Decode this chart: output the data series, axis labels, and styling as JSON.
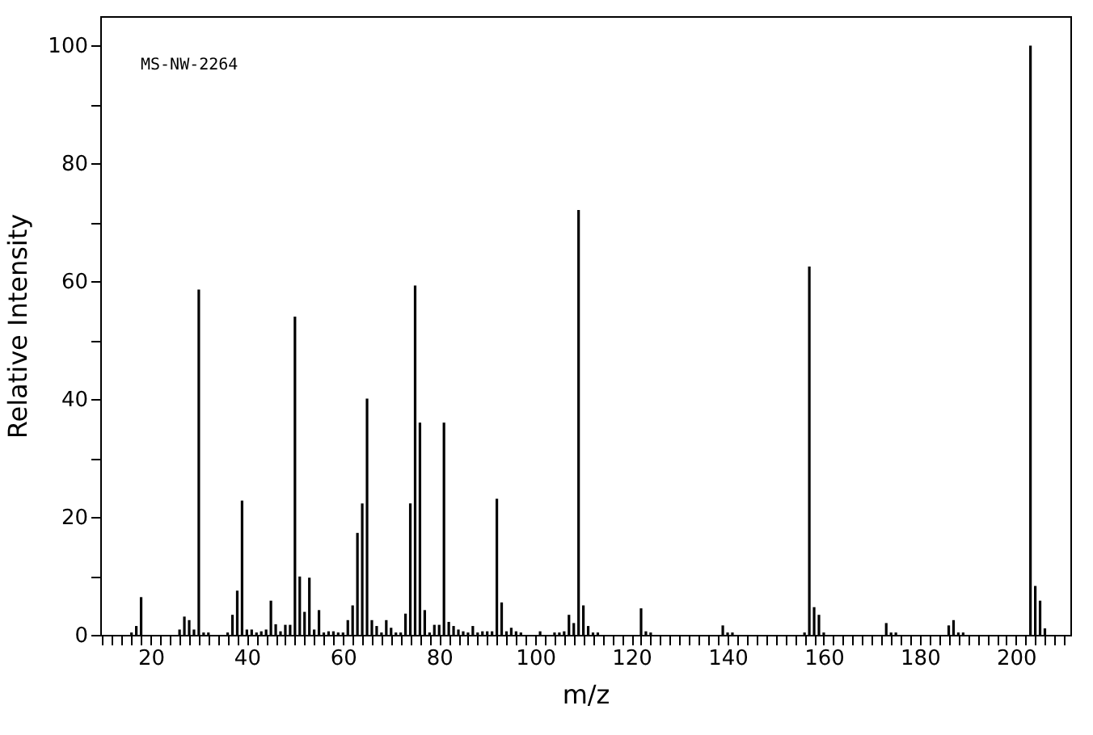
{
  "chart_data": {
    "type": "bar",
    "xlabel": "m/z",
    "ylabel": "Relative Intensity",
    "annotations": [
      "MS-NW-2264"
    ],
    "color": "#000000",
    "grid": false,
    "x": [
      16,
      17,
      18,
      26,
      27,
      28,
      29,
      30,
      31,
      32,
      36,
      37,
      38,
      39,
      40,
      41,
      42,
      43,
      44,
      45,
      46,
      47,
      48,
      49,
      50,
      51,
      52,
      53,
      54,
      55,
      56,
      57,
      58,
      59,
      60,
      61,
      62,
      63,
      64,
      65,
      66,
      67,
      68,
      69,
      70,
      71,
      72,
      73,
      74,
      75,
      76,
      77,
      78,
      79,
      80,
      81,
      82,
      83,
      84,
      85,
      86,
      87,
      88,
      89,
      90,
      91,
      92,
      93,
      94,
      95,
      96,
      97,
      101,
      104,
      105,
      106,
      107,
      108,
      109,
      110,
      111,
      112,
      113,
      122,
      123,
      124,
      139,
      140,
      141,
      156,
      157,
      158,
      159,
      160,
      173,
      174,
      175,
      186,
      187,
      188,
      189,
      203,
      204,
      205,
      206
    ],
    "values": [
      0.4,
      1.5,
      6.4,
      0.9,
      3.1,
      2.5,
      0.9,
      58.6,
      0.4,
      0.4,
      0.4,
      3.4,
      7.5,
      22.8,
      0.9,
      0.9,
      0.4,
      0.6,
      0.9,
      5.8,
      1.8,
      0.6,
      1.7,
      1.7,
      54.0,
      9.9,
      3.9,
      9.7,
      0.9,
      4.2,
      0.4,
      0.6,
      0.6,
      0.4,
      0.4,
      2.5,
      5.0,
      17.3,
      22.3,
      40.1,
      2.5,
      1.5,
      0.4,
      2.5,
      1.2,
      0.4,
      0.4,
      3.6,
      22.3,
      59.3,
      36.0,
      4.2,
      0.4,
      1.7,
      1.7,
      36.0,
      2.2,
      1.5,
      0.9,
      0.6,
      0.4,
      1.5,
      0.4,
      0.6,
      0.6,
      0.6,
      23.1,
      5.5,
      0.6,
      1.2,
      0.6,
      0.4,
      0.6,
      0.4,
      0.4,
      0.6,
      3.4,
      2.0,
      72.1,
      5.0,
      1.5,
      0.4,
      0.4,
      4.5,
      0.6,
      0.4,
      1.6,
      0.4,
      0.4,
      0.4,
      62.5,
      4.7,
      3.4,
      0.4,
      2.0,
      0.4,
      0.4,
      1.6,
      2.5,
      0.4,
      0.4,
      100,
      8.3,
      5.8,
      1.1
    ],
    "xlim": [
      9.5,
      211.3
    ],
    "ylim": [
      0,
      105
    ],
    "xticks": [
      {
        "value": 10,
        "label": null
      },
      {
        "value": 12,
        "label": null
      },
      {
        "value": 14,
        "label": null
      },
      {
        "value": 16,
        "label": null
      },
      {
        "value": 18,
        "label": null
      },
      20,
      {
        "value": 22,
        "label": null
      },
      {
        "value": 24,
        "label": null
      },
      {
        "value": 26,
        "label": null
      },
      {
        "value": 28,
        "label": null
      },
      {
        "value": 30,
        "label": null
      },
      {
        "value": 32,
        "label": null
      },
      {
        "value": 34,
        "label": null
      },
      {
        "value": 36,
        "label": null
      },
      {
        "value": 38,
        "label": null
      },
      40,
      {
        "value": 42,
        "label": null
      },
      {
        "value": 44,
        "label": null
      },
      {
        "value": 46,
        "label": null
      },
      {
        "value": 48,
        "label": null
      },
      {
        "value": 50,
        "label": null
      },
      {
        "value": 52,
        "label": null
      },
      {
        "value": 54,
        "label": null
      },
      {
        "value": 56,
        "label": null
      },
      {
        "value": 58,
        "label": null
      },
      60,
      {
        "value": 62,
        "label": null
      },
      {
        "value": 64,
        "label": null
      },
      {
        "value": 66,
        "label": null
      },
      {
        "value": 68,
        "label": null
      },
      {
        "value": 70,
        "label": null
      },
      {
        "value": 72,
        "label": null
      },
      {
        "value": 74,
        "label": null
      },
      {
        "value": 76,
        "label": null
      },
      {
        "value": 78,
        "label": null
      },
      80,
      {
        "value": 82,
        "label": null
      },
      {
        "value": 84,
        "label": null
      },
      {
        "value": 86,
        "label": null
      },
      {
        "value": 88,
        "label": null
      },
      {
        "value": 90,
        "label": null
      },
      {
        "value": 92,
        "label": null
      },
      {
        "value": 94,
        "label": null
      },
      {
        "value": 96,
        "label": null
      },
      {
        "value": 98,
        "label": null
      },
      100,
      {
        "value": 102,
        "label": null
      },
      {
        "value": 104,
        "label": null
      },
      {
        "value": 106,
        "label": null
      },
      {
        "value": 108,
        "label": null
      },
      {
        "value": 110,
        "label": null
      },
      {
        "value": 112,
        "label": null
      },
      {
        "value": 114,
        "label": null
      },
      {
        "value": 116,
        "label": null
      },
      {
        "value": 118,
        "label": null
      },
      120,
      {
        "value": 122,
        "label": null
      },
      {
        "value": 124,
        "label": null
      },
      {
        "value": 126,
        "label": null
      },
      {
        "value": 128,
        "label": null
      },
      {
        "value": 130,
        "label": null
      },
      {
        "value": 132,
        "label": null
      },
      {
        "value": 134,
        "label": null
      },
      {
        "value": 136,
        "label": null
      },
      {
        "value": 138,
        "label": null
      },
      140,
      {
        "value": 142,
        "label": null
      },
      {
        "value": 144,
        "label": null
      },
      {
        "value": 146,
        "label": null
      },
      {
        "value": 148,
        "label": null
      },
      {
        "value": 150,
        "label": null
      },
      {
        "value": 152,
        "label": null
      },
      {
        "value": 154,
        "label": null
      },
      {
        "value": 156,
        "label": null
      },
      {
        "value": 158,
        "label": null
      },
      160,
      {
        "value": 162,
        "label": null
      },
      {
        "value": 164,
        "label": null
      },
      {
        "value": 166,
        "label": null
      },
      {
        "value": 168,
        "label": null
      },
      {
        "value": 170,
        "label": null
      },
      {
        "value": 172,
        "label": null
      },
      {
        "value": 174,
        "label": null
      },
      {
        "value": 176,
        "label": null
      },
      {
        "value": 178,
        "label": null
      },
      180,
      {
        "value": 182,
        "label": null
      },
      {
        "value": 184,
        "label": null
      },
      {
        "value": 186,
        "label": null
      },
      {
        "value": 188,
        "label": null
      },
      {
        "value": 190,
        "label": null
      },
      {
        "value": 192,
        "label": null
      },
      {
        "value": 194,
        "label": null
      },
      {
        "value": 196,
        "label": null
      },
      {
        "value": 198,
        "label": null
      },
      200,
      {
        "value": 202,
        "label": null
      },
      {
        "value": 204,
        "label": null
      },
      {
        "value": 206,
        "label": null
      },
      {
        "value": 208,
        "label": null
      },
      {
        "value": 210,
        "label": null
      }
    ],
    "yticks": [
      0,
      {
        "value": 10,
        "label": null
      },
      20,
      {
        "value": 30,
        "label": null
      },
      40,
      {
        "value": 50,
        "label": null
      },
      60,
      {
        "value": 70,
        "label": null
      },
      80,
      {
        "value": 90,
        "label": null
      },
      100
    ]
  }
}
